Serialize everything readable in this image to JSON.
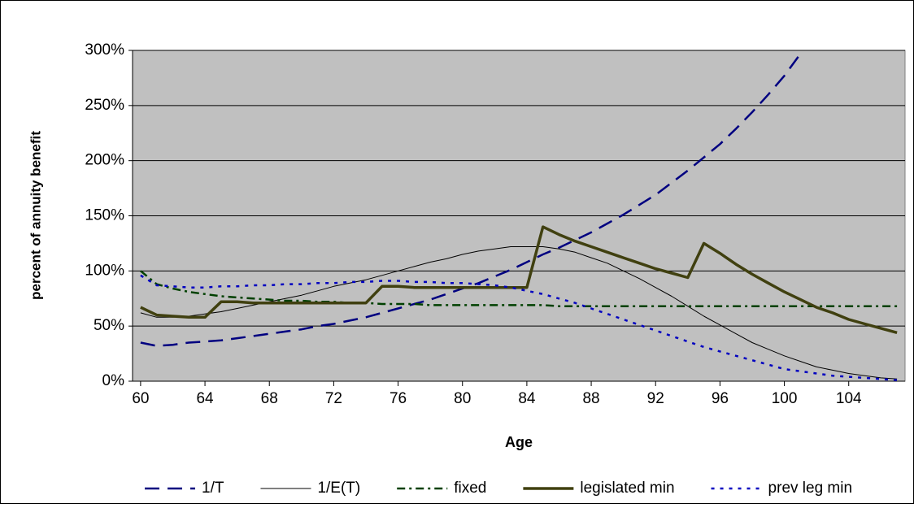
{
  "chart_data": {
    "type": "line",
    "y_label": "percent of annuity benefit",
    "x_label": "Age",
    "x": [
      60,
      61,
      62,
      63,
      64,
      65,
      66,
      67,
      68,
      69,
      70,
      71,
      72,
      73,
      74,
      75,
      76,
      77,
      78,
      79,
      80,
      81,
      82,
      83,
      84,
      85,
      86,
      87,
      88,
      89,
      90,
      91,
      92,
      93,
      94,
      95,
      96,
      97,
      98,
      99,
      100,
      101,
      102,
      103,
      104,
      105,
      106,
      107
    ],
    "xlim": [
      59.5,
      107.5
    ],
    "xticks": [
      60,
      64,
      68,
      72,
      76,
      80,
      84,
      88,
      92,
      96,
      100,
      104
    ],
    "ylim": [
      0,
      300
    ],
    "yticks": [
      {
        "value": 0,
        "label": "0%"
      },
      {
        "value": 50,
        "label": "50%"
      },
      {
        "value": 100,
        "label": "100%"
      },
      {
        "value": 150,
        "label": "150%"
      },
      {
        "value": 200,
        "label": "200%"
      },
      {
        "value": 250,
        "label": "250%"
      },
      {
        "value": 300,
        "label": "300%"
      }
    ],
    "grid": true,
    "legend": "bottom",
    "series": [
      {
        "name": "1/T",
        "color": "#000080",
        "width": 2.5,
        "dash": "18,10",
        "values": [
          35,
          32,
          33,
          35,
          36,
          37,
          39,
          41,
          43,
          45,
          47,
          50,
          52,
          55,
          58,
          62,
          66,
          70,
          74,
          79,
          84,
          89,
          95,
          101,
          108,
          115,
          121,
          128,
          135,
          143,
          151,
          160,
          169,
          180,
          191,
          203,
          215,
          229,
          244,
          260,
          277,
          297,
          null,
          null,
          null,
          null,
          null,
          null
        ]
      },
      {
        "name": "1/E(T)",
        "color": "#000000",
        "width": 1,
        "dash": "none",
        "values": [
          62,
          58,
          58,
          59,
          61,
          63,
          66,
          69,
          72,
          75,
          78,
          82,
          86,
          89,
          92,
          96,
          100,
          104,
          108,
          111,
          115,
          118,
          120,
          122,
          122,
          122,
          120,
          117,
          112,
          107,
          100,
          93,
          85,
          77,
          68,
          59,
          51,
          43,
          35,
          29,
          23,
          18,
          13,
          10,
          7,
          5,
          3,
          2
        ]
      },
      {
        "name": "fixed",
        "color": "#004000",
        "width": 2.5,
        "dash": "10,5,3,5",
        "values": [
          100,
          88,
          84,
          81,
          79,
          77,
          76,
          75,
          74,
          73,
          73,
          72,
          72,
          71,
          71,
          70,
          70,
          70,
          69,
          69,
          69,
          69,
          69,
          69,
          69,
          69,
          68,
          68,
          68,
          68,
          68,
          68,
          68,
          68,
          68,
          68,
          68,
          68,
          68,
          68,
          68,
          68,
          68,
          68,
          68,
          68,
          68,
          68
        ]
      },
      {
        "name": "legislated min",
        "color": "#404010",
        "width": 3.5,
        "dash": "none",
        "values": [
          67,
          60,
          59,
          58,
          58,
          72,
          72,
          71,
          71,
          71,
          71,
          71,
          71,
          71,
          71,
          86,
          86,
          85,
          85,
          85,
          85,
          85,
          85,
          85,
          85,
          140,
          133,
          127,
          122,
          117,
          112,
          107,
          102,
          98,
          94,
          125,
          116,
          106,
          97,
          89,
          81,
          74,
          67,
          62,
          56,
          52,
          48,
          44
        ]
      },
      {
        "name": "prev leg min",
        "color": "#0000c0",
        "width": 2.5,
        "dash": "4,7",
        "values": [
          96,
          87,
          86,
          85,
          85,
          86,
          86,
          87,
          87,
          88,
          88,
          89,
          89,
          90,
          90,
          91,
          91,
          90,
          90,
          89,
          89,
          88,
          87,
          85,
          82,
          79,
          75,
          71,
          66,
          61,
          56,
          51,
          46,
          41,
          36,
          31,
          27,
          23,
          19,
          15,
          11,
          9,
          7,
          5,
          4,
          3,
          2,
          1
        ]
      }
    ]
  }
}
